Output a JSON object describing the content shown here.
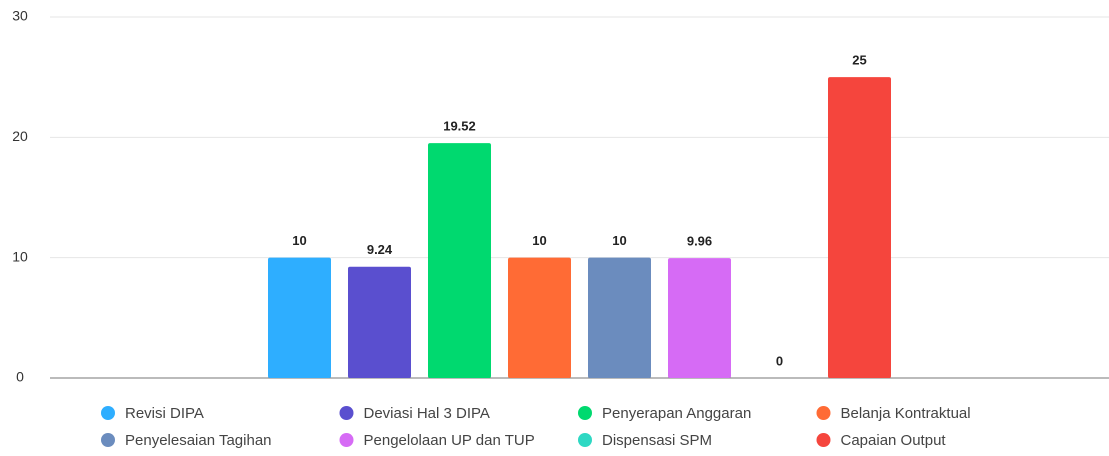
{
  "chart_data": {
    "type": "bar",
    "categories": [
      null
    ],
    "series": [
      {
        "name": "Revisi DIPA",
        "color": "#2eaeff",
        "values": [
          10
        ]
      },
      {
        "name": "Deviasi Hal 3 DIPA",
        "color": "#5a4fcf",
        "values": [
          9.24
        ]
      },
      {
        "name": "Penyerapan Anggaran",
        "color": "#00d96f",
        "values": [
          19.52
        ]
      },
      {
        "name": "Belanja Kontraktual",
        "color": "#ff6b35",
        "values": [
          10
        ]
      },
      {
        "name": "Penyelesaian Tagihan",
        "color": "#6b8cbe",
        "values": [
          10
        ]
      },
      {
        "name": "Pengelolaan UP dan TUP",
        "color": "#d66bf5",
        "values": [
          9.96
        ]
      },
      {
        "name": "Dispensasi SPM",
        "color": "#2ed8c3",
        "values": [
          0
        ]
      },
      {
        "name": "Capaian Output",
        "color": "#f5453d",
        "values": [
          25
        ]
      }
    ],
    "ylim": [
      0,
      30
    ],
    "yticks": [
      0,
      10,
      20,
      30
    ],
    "grid": true,
    "legend": "bottom"
  }
}
